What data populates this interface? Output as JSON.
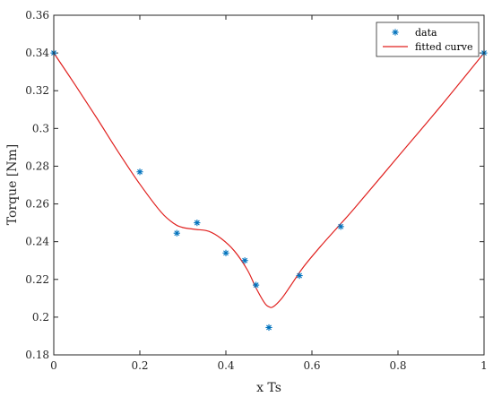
{
  "chart_data": {
    "type": "scatter",
    "xlabel": "x Ts",
    "ylabel": "Torque [Nm]",
    "xlim": [
      0,
      1
    ],
    "ylim": [
      0.18,
      0.36
    ],
    "xticks": [
      0,
      0.2,
      0.4,
      0.6,
      0.8,
      1
    ],
    "xtick_labels": [
      "0",
      "0.2",
      "0.4",
      "0.6",
      "0.8",
      "1"
    ],
    "yticks": [
      0.18,
      0.2,
      0.22,
      0.24,
      0.26,
      0.28,
      0.3,
      0.32,
      0.34,
      0.36
    ],
    "ytick_labels": [
      "0.18",
      "0.2",
      "0.22",
      "0.24",
      "0.26",
      "0.28",
      "0.3",
      "0.32",
      "0.34",
      "0.36"
    ],
    "grid": false,
    "legend": {
      "position": "top-right",
      "entries": [
        "data",
        "fitted curve"
      ]
    },
    "series": [
      {
        "name": "data",
        "kind": "scatter",
        "marker": "asterisk",
        "color": "#0072BD",
        "x": [
          0,
          0.2,
          0.286,
          0.333,
          0.4,
          0.444,
          0.47,
          0.5,
          0.571,
          0.667,
          1
        ],
        "y": [
          0.34,
          0.277,
          0.2445,
          0.25,
          0.234,
          0.23,
          0.217,
          0.1945,
          0.222,
          0.248,
          0.34
        ]
      },
      {
        "name": "fitted curve",
        "kind": "line",
        "color": "#e0211f",
        "x": [
          0,
          0.05,
          0.1,
          0.15,
          0.2,
          0.25,
          0.28,
          0.3,
          0.33,
          0.36,
          0.39,
          0.42,
          0.45,
          0.47,
          0.49,
          0.5,
          0.51,
          0.53,
          0.55,
          0.58,
          0.62,
          0.667,
          0.7,
          0.8,
          0.9,
          1
        ],
        "y": [
          0.34,
          0.323,
          0.3055,
          0.2875,
          0.2705,
          0.2555,
          0.2495,
          0.2475,
          0.2465,
          0.2455,
          0.2415,
          0.235,
          0.225,
          0.2155,
          0.2075,
          0.2055,
          0.2055,
          0.21,
          0.2165,
          0.2265,
          0.2375,
          0.2495,
          0.258,
          0.285,
          0.312,
          0.34
        ]
      }
    ]
  }
}
